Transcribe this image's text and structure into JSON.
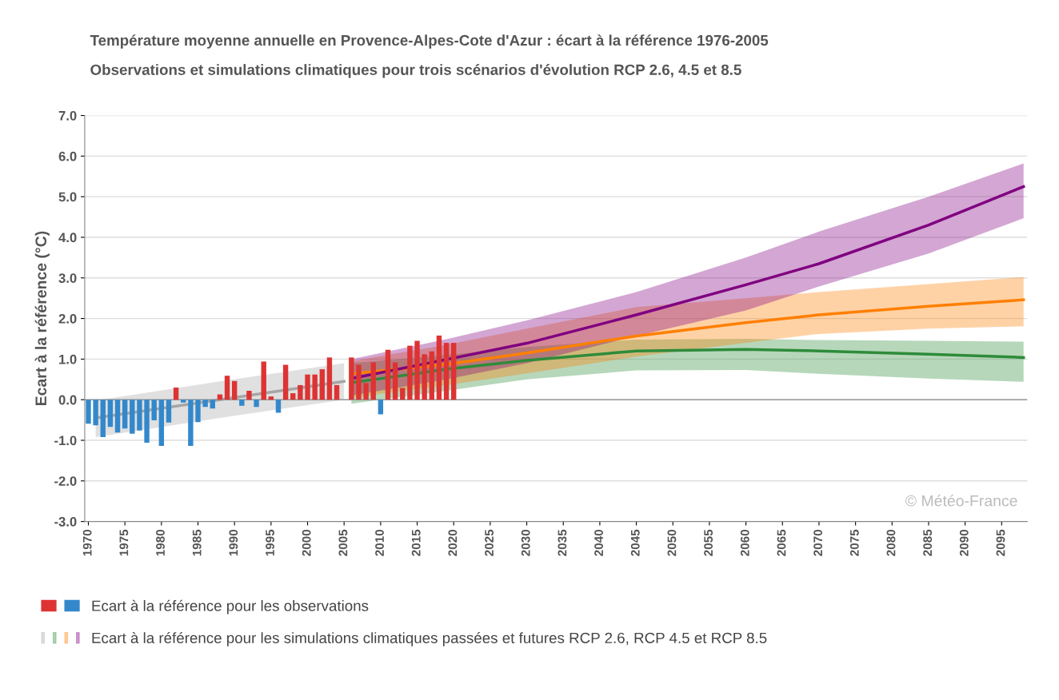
{
  "chart_data": {
    "type": "bar",
    "title": "Température moyenne annuelle en Provence-Alpes-Cote d'Azur : écart à la référence 1976-2005",
    "subtitle": "Observations et simulations climatiques pour trois scénarios d'évolution RCP 2.6, 4.5 et 8.5",
    "ylabel": "Ecart à la référence (°C)",
    "xlim": [
      1969.5,
      2098.5
    ],
    "xticks": [
      1970,
      1975,
      1980,
      1985,
      1990,
      1995,
      2000,
      2005,
      2010,
      2015,
      2020,
      2025,
      2030,
      2035,
      2040,
      2045,
      2050,
      2055,
      2060,
      2065,
      2070,
      2075,
      2080,
      2085,
      2090,
      2095
    ],
    "ylim": [
      -3,
      7
    ],
    "yticks": [
      {
        "value": -3,
        "label": "-3.0"
      },
      {
        "value": -2,
        "label": "-2.0"
      },
      {
        "value": -1,
        "label": "-1.0"
      },
      {
        "value": 0,
        "label": "0.0"
      },
      {
        "value": 1,
        "label": "1.0"
      },
      {
        "value": 2,
        "label": "2.0"
      },
      {
        "value": 3,
        "label": "3.0"
      },
      {
        "value": 4,
        "label": "4.0"
      },
      {
        "value": 5,
        "label": "5.0"
      },
      {
        "value": 6,
        "label": "6.0"
      },
      {
        "value": 7,
        "label": "7.0"
      }
    ],
    "grid": "y",
    "legend": "bottom",
    "ref_lines": [
      {
        "axis": "y",
        "value": 0,
        "color": "#999999"
      }
    ],
    "annotations": [
      "© Météo-France"
    ],
    "series": [
      {
        "type": "line",
        "color": "#a6a6a6",
        "x": [
          1971,
          1988,
          2005
        ],
        "values": [
          -0.45,
          0.0,
          0.45
        ],
        "lower": [
          -0.92,
          -0.45,
          0.0
        ],
        "upper": [
          -0.02,
          0.45,
          0.9
        ]
      },
      {
        "type": "line",
        "color": "#2e8b3a",
        "x": [
          2006,
          2019,
          2030,
          2045,
          2060,
          2070,
          2085,
          2098
        ],
        "values": [
          0.42,
          0.75,
          0.97,
          1.2,
          1.24,
          1.2,
          1.12,
          1.04
        ],
        "lower": [
          -0.1,
          0.22,
          0.5,
          0.72,
          0.73,
          0.64,
          0.52,
          0.44
        ],
        "upper": [
          0.9,
          1.1,
          1.3,
          1.48,
          1.5,
          1.47,
          1.45,
          1.43
        ]
      },
      {
        "type": "line",
        "color": "#ff7f00",
        "x": [
          2006,
          2019,
          2030,
          2045,
          2060,
          2070,
          2085,
          2098
        ],
        "values": [
          0.64,
          0.87,
          1.15,
          1.57,
          1.9,
          2.09,
          2.3,
          2.46
        ],
        "lower": [
          0.05,
          0.36,
          0.65,
          1.06,
          1.4,
          1.62,
          1.75,
          1.81
        ],
        "upper": [
          0.95,
          1.35,
          1.75,
          2.28,
          2.5,
          2.65,
          2.85,
          3.02
        ]
      },
      {
        "type": "line",
        "color": "#800080",
        "name": "Ecart à la référence pour les simulations climatiques passées et futures RCP 2.6, RCP 4.5 et RCP 8.5",
        "x": [
          2006,
          2019,
          2030,
          2045,
          2060,
          2070,
          2085,
          2098
        ],
        "values": [
          0.52,
          0.99,
          1.39,
          2.09,
          2.83,
          3.35,
          4.3,
          5.25
        ],
        "lower": [
          0.1,
          0.5,
          0.9,
          1.57,
          2.2,
          2.79,
          3.6,
          4.47
        ],
        "upper": [
          1.0,
          1.49,
          1.95,
          2.65,
          3.5,
          4.14,
          5.0,
          5.82
        ]
      },
      {
        "name": "Ecart à la référence pour les observations",
        "x": [
          1970,
          1971,
          1972,
          1973,
          1974,
          1975,
          1976,
          1977,
          1978,
          1979,
          1980,
          1981,
          1982,
          1983,
          1984,
          1985,
          1986,
          1987,
          1988,
          1989,
          1990,
          1991,
          1992,
          1993,
          1994,
          1995,
          1996,
          1997,
          1998,
          1999,
          2000,
          2001,
          2002,
          2003,
          2004,
          2005,
          2006,
          2007,
          2008,
          2009,
          2010,
          2011,
          2012,
          2013,
          2014,
          2015,
          2016,
          2017,
          2018,
          2019,
          2020
        ],
        "values": [
          -0.59,
          -0.63,
          -0.92,
          -0.67,
          -0.81,
          -0.71,
          -0.84,
          -0.76,
          -1.06,
          -0.51,
          -1.14,
          -0.56,
          0.3,
          -0.07,
          -1.14,
          -0.55,
          -0.18,
          -0.22,
          0.13,
          0.59,
          0.46,
          -0.15,
          0.22,
          -0.18,
          0.94,
          0.08,
          -0.32,
          0.86,
          0.16,
          0.36,
          0.62,
          0.62,
          0.75,
          1.04,
          0.36,
          null,
          1.04,
          0.86,
          0.41,
          0.92,
          -0.36,
          1.23,
          0.92,
          0.29,
          1.33,
          1.45,
          1.12,
          1.19,
          1.58,
          1.4,
          1.4
        ],
        "colors": [
          "#3388cc",
          "#3388cc",
          "#3388cc",
          "#3388cc",
          "#3388cc",
          "#3388cc",
          "#3388cc",
          "#3388cc",
          "#3388cc",
          "#3388cc",
          "#3388cc",
          "#3388cc",
          "#dd3333",
          "#3388cc",
          "#3388cc",
          "#3388cc",
          "#3388cc",
          "#3388cc",
          "#dd3333",
          "#dd3333",
          "#dd3333",
          "#3388cc",
          "#dd3333",
          "#3388cc",
          "#dd3333",
          "#dd3333",
          "#3388cc",
          "#dd3333",
          "#dd3333",
          "#dd3333",
          "#dd3333",
          "#dd3333",
          "#dd3333",
          "#dd3333",
          "#dd3333",
          "#dd3333",
          "#dd3333",
          "#dd3333",
          "#dd3333",
          "#dd3333",
          "#3388cc",
          "#dd3333",
          "#dd3333",
          "#dd3333",
          "#dd3333",
          "#dd3333",
          "#dd3333",
          "#dd3333",
          "#dd3333",
          "#dd3333",
          "#dd3333"
        ]
      }
    ]
  }
}
